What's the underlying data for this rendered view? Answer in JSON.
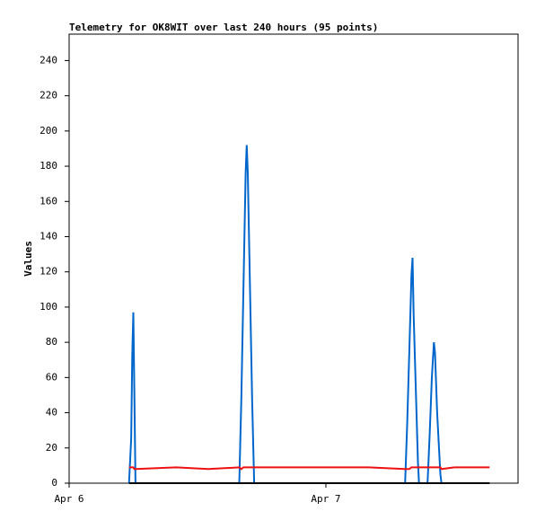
{
  "chart_data": {
    "type": "line",
    "title": "Telemetry for OK8WIT over last 240 hours (95 points)",
    "y_label": "Values",
    "x": [
      5.6,
      5.8,
      5.9,
      6.0,
      6.1,
      6.2,
      10,
      13,
      15.9,
      16.1,
      16.3,
      16.5,
      16.6,
      16.7,
      16.9,
      17.1,
      17.3,
      20,
      24,
      28,
      31.4,
      31.6,
      31.8,
      32.0,
      32.1,
      32.2,
      32.4,
      32.6,
      32.7,
      33.5,
      33.7,
      33.9,
      34.1,
      34.2,
      34.4,
      34.7,
      34.8,
      36,
      39.3
    ],
    "series": [
      {
        "color": "#0066cc",
        "values": [
          0,
          25,
          72,
          97,
          49,
          0,
          0,
          0,
          0,
          48,
          112,
          176,
          192,
          176,
          112,
          48,
          0,
          0,
          0,
          0,
          0,
          33,
          75,
          118,
          128,
          96,
          54,
          12,
          0,
          0,
          28,
          60,
          80,
          74,
          40,
          5,
          0,
          0,
          0
        ]
      },
      {
        "color": "#ee1111",
        "values": [
          9,
          9,
          9,
          9,
          8,
          8,
          9,
          8,
          9,
          8,
          9,
          9,
          9,
          9,
          9,
          9,
          9,
          9,
          9,
          9,
          8,
          8,
          8,
          9,
          9,
          9,
          9,
          9,
          9,
          9,
          9,
          9,
          9,
          9,
          9,
          9,
          8,
          9,
          9
        ]
      },
      {
        "color": "#000000",
        "values": [
          0,
          0,
          0,
          0,
          0,
          0,
          0,
          0,
          0,
          0,
          0,
          0,
          0,
          0,
          0,
          0,
          0,
          0,
          0,
          0,
          0,
          0,
          0,
          0,
          0,
          0,
          0,
          0,
          0,
          0,
          0,
          0,
          0,
          0,
          0,
          0,
          0,
          0,
          0
        ]
      }
    ],
    "xlim": [
      0,
      41.96
    ],
    "xticks": [
      {
        "value": 0,
        "label": "Apr 6"
      },
      {
        "value": 24,
        "label": "Apr 7"
      }
    ],
    "ylim": [
      0,
      255
    ],
    "yticks": [
      0,
      20,
      40,
      60,
      80,
      100,
      120,
      140,
      160,
      180,
      200,
      220,
      240
    ]
  }
}
